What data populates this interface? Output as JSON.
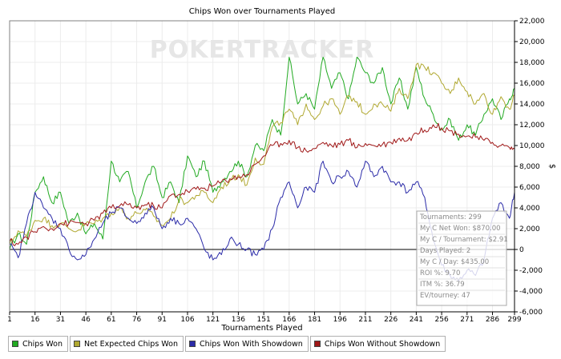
{
  "chart_data": {
    "type": "line",
    "title": "Chips Won over Tournaments Played",
    "watermark": "POKERTRACKER",
    "xlabel": "Tournaments Played",
    "ylabel": "$",
    "xlim": [
      1,
      299
    ],
    "ylim": [
      -6000,
      22000
    ],
    "x_ticks": [
      1,
      16,
      31,
      46,
      61,
      76,
      91,
      106,
      121,
      136,
      151,
      166,
      181,
      196,
      211,
      226,
      241,
      256,
      271,
      286,
      299
    ],
    "y_ticks": [
      -6000,
      -4000,
      -2000,
      0,
      2000,
      4000,
      6000,
      8000,
      10000,
      12000,
      14000,
      16000,
      18000,
      20000,
      22000
    ],
    "y_tick_labels": [
      "-6,000",
      "-4,000",
      "-2,000",
      "0",
      "2,000",
      "4,000",
      "6,000",
      "8,000",
      "10,000",
      "12,000",
      "14,000",
      "16,000",
      "18,000",
      "20,000",
      "22,000"
    ],
    "grid": true,
    "legend_position": "bottom",
    "series": [
      {
        "name": "Chips Won",
        "color": "#22aa22",
        "points": [
          [
            1,
            0
          ],
          [
            6,
            1500
          ],
          [
            11,
            500
          ],
          [
            16,
            5500
          ],
          [
            21,
            7000
          ],
          [
            26,
            4500
          ],
          [
            31,
            5500
          ],
          [
            36,
            2500
          ],
          [
            41,
            3500
          ],
          [
            46,
            1500
          ],
          [
            51,
            2500
          ],
          [
            56,
            1000
          ],
          [
            61,
            8500
          ],
          [
            66,
            6500
          ],
          [
            71,
            7500
          ],
          [
            76,
            4000
          ],
          [
            81,
            6500
          ],
          [
            86,
            8000
          ],
          [
            91,
            5000
          ],
          [
            96,
            6500
          ],
          [
            101,
            4500
          ],
          [
            106,
            9000
          ],
          [
            111,
            7000
          ],
          [
            116,
            8500
          ],
          [
            121,
            5500
          ],
          [
            126,
            6500
          ],
          [
            131,
            7500
          ],
          [
            136,
            8500
          ],
          [
            141,
            7000
          ],
          [
            146,
            10000
          ],
          [
            151,
            9500
          ],
          [
            156,
            12500
          ],
          [
            161,
            11000
          ],
          [
            166,
            18500
          ],
          [
            171,
            14000
          ],
          [
            176,
            15000
          ],
          [
            181,
            13500
          ],
          [
            186,
            18500
          ],
          [
            191,
            15500
          ],
          [
            196,
            17000
          ],
          [
            201,
            14500
          ],
          [
            206,
            18500
          ],
          [
            211,
            17000
          ],
          [
            216,
            16000
          ],
          [
            221,
            17500
          ],
          [
            226,
            14000
          ],
          [
            231,
            16500
          ],
          [
            236,
            13500
          ],
          [
            241,
            17500
          ],
          [
            246,
            14500
          ],
          [
            251,
            13000
          ],
          [
            256,
            11500
          ],
          [
            261,
            12500
          ],
          [
            266,
            10500
          ],
          [
            271,
            12000
          ],
          [
            276,
            11000
          ],
          [
            281,
            13000
          ],
          [
            286,
            14500
          ],
          [
            291,
            12500
          ],
          [
            296,
            14500
          ],
          [
            299,
            15500
          ]
        ]
      },
      {
        "name": "Net Expected Chips Won",
        "color": "#b0a830",
        "points": [
          [
            1,
            500
          ],
          [
            6,
            1800
          ],
          [
            11,
            1300
          ],
          [
            16,
            2800
          ],
          [
            21,
            3000
          ],
          [
            26,
            2300
          ],
          [
            31,
            2500
          ],
          [
            36,
            2000
          ],
          [
            41,
            1800
          ],
          [
            46,
            2500
          ],
          [
            51,
            2500
          ],
          [
            56,
            3000
          ],
          [
            61,
            3500
          ],
          [
            66,
            4000
          ],
          [
            71,
            3000
          ],
          [
            76,
            3500
          ],
          [
            81,
            3800
          ],
          [
            86,
            3200
          ],
          [
            91,
            2300
          ],
          [
            96,
            3000
          ],
          [
            101,
            4800
          ],
          [
            106,
            4500
          ],
          [
            111,
            5200
          ],
          [
            116,
            5500
          ],
          [
            121,
            4500
          ],
          [
            126,
            6000
          ],
          [
            131,
            6600
          ],
          [
            136,
            7200
          ],
          [
            141,
            6200
          ],
          [
            146,
            8800
          ],
          [
            151,
            8200
          ],
          [
            156,
            11800
          ],
          [
            161,
            12200
          ],
          [
            166,
            13500
          ],
          [
            171,
            12000
          ],
          [
            176,
            14000
          ],
          [
            181,
            12500
          ],
          [
            186,
            13800
          ],
          [
            191,
            14500
          ],
          [
            196,
            13000
          ],
          [
            201,
            14800
          ],
          [
            206,
            14200
          ],
          [
            211,
            13000
          ],
          [
            216,
            14000
          ],
          [
            221,
            14000
          ],
          [
            226,
            13300
          ],
          [
            231,
            15500
          ],
          [
            236,
            14500
          ],
          [
            241,
            17800
          ],
          [
            246,
            17500
          ],
          [
            251,
            17000
          ],
          [
            256,
            16000
          ],
          [
            261,
            15000
          ],
          [
            266,
            16500
          ],
          [
            271,
            15200
          ],
          [
            276,
            14000
          ],
          [
            281,
            15000
          ],
          [
            286,
            13000
          ],
          [
            291,
            14700
          ],
          [
            296,
            13500
          ],
          [
            299,
            14800
          ]
        ]
      },
      {
        "name": "Chips Won With Showdown",
        "color": "#2b2ba8",
        "points": [
          [
            1,
            500
          ],
          [
            6,
            -800
          ],
          [
            11,
            2500
          ],
          [
            16,
            5500
          ],
          [
            21,
            4000
          ],
          [
            26,
            3000
          ],
          [
            31,
            2000
          ],
          [
            36,
            0
          ],
          [
            41,
            -1000
          ],
          [
            46,
            -500
          ],
          [
            51,
            1000
          ],
          [
            56,
            2500
          ],
          [
            61,
            3500
          ],
          [
            66,
            4000
          ],
          [
            71,
            3000
          ],
          [
            76,
            2500
          ],
          [
            81,
            3500
          ],
          [
            86,
            4000
          ],
          [
            91,
            2000
          ],
          [
            96,
            3000
          ],
          [
            101,
            2500
          ],
          [
            106,
            3000
          ],
          [
            111,
            2000
          ],
          [
            116,
            0
          ],
          [
            121,
            -1000
          ],
          [
            126,
            -500
          ],
          [
            131,
            1000
          ],
          [
            136,
            500
          ],
          [
            141,
            0
          ],
          [
            146,
            -500
          ],
          [
            151,
            0
          ],
          [
            156,
            2000
          ],
          [
            161,
            5000
          ],
          [
            166,
            6500
          ],
          [
            171,
            4000
          ],
          [
            176,
            6000
          ],
          [
            181,
            5500
          ],
          [
            186,
            8500
          ],
          [
            191,
            6500
          ],
          [
            196,
            7000
          ],
          [
            201,
            7500
          ],
          [
            206,
            6000
          ],
          [
            211,
            8500
          ],
          [
            216,
            7000
          ],
          [
            221,
            8000
          ],
          [
            226,
            6500
          ],
          [
            231,
            6500
          ],
          [
            236,
            5500
          ],
          [
            241,
            6500
          ],
          [
            246,
            5000
          ],
          [
            251,
            1000
          ],
          [
            256,
            -1500
          ],
          [
            261,
            -2500
          ],
          [
            266,
            -3000
          ],
          [
            271,
            -2000
          ],
          [
            276,
            -2500
          ],
          [
            281,
            -1000
          ],
          [
            286,
            3000
          ],
          [
            291,
            4500
          ],
          [
            296,
            3000
          ],
          [
            299,
            5500
          ]
        ]
      },
      {
        "name": "Chips Won Without Showdown",
        "color": "#a01818",
        "points": [
          [
            1,
            800
          ],
          [
            6,
            500
          ],
          [
            11,
            1200
          ],
          [
            16,
            1700
          ],
          [
            21,
            2200
          ],
          [
            26,
            2000
          ],
          [
            31,
            2500
          ],
          [
            36,
            2500
          ],
          [
            41,
            2600
          ],
          [
            46,
            2500
          ],
          [
            51,
            2800
          ],
          [
            56,
            3500
          ],
          [
            61,
            4000
          ],
          [
            66,
            4200
          ],
          [
            71,
            4300
          ],
          [
            76,
            4000
          ],
          [
            81,
            4300
          ],
          [
            86,
            4200
          ],
          [
            91,
            4000
          ],
          [
            96,
            5200
          ],
          [
            101,
            5300
          ],
          [
            106,
            5600
          ],
          [
            111,
            5800
          ],
          [
            116,
            5900
          ],
          [
            121,
            6100
          ],
          [
            126,
            6500
          ],
          [
            131,
            6800
          ],
          [
            136,
            7000
          ],
          [
            141,
            7200
          ],
          [
            146,
            8200
          ],
          [
            151,
            9000
          ],
          [
            156,
            10000
          ],
          [
            161,
            10200
          ],
          [
            166,
            10500
          ],
          [
            171,
            9800
          ],
          [
            176,
            9500
          ],
          [
            181,
            9700
          ],
          [
            186,
            10300
          ],
          [
            191,
            10000
          ],
          [
            196,
            10100
          ],
          [
            201,
            10500
          ],
          [
            206,
            9800
          ],
          [
            211,
            10200
          ],
          [
            216,
            10000
          ],
          [
            221,
            10100
          ],
          [
            226,
            10300
          ],
          [
            231,
            10700
          ],
          [
            236,
            10500
          ],
          [
            241,
            11200
          ],
          [
            246,
            11500
          ],
          [
            251,
            12000
          ],
          [
            256,
            11700
          ],
          [
            261,
            11400
          ],
          [
            266,
            11100
          ],
          [
            271,
            10900
          ],
          [
            276,
            10800
          ],
          [
            281,
            10500
          ],
          [
            286,
            10300
          ],
          [
            291,
            10000
          ],
          [
            296,
            9800
          ],
          [
            299,
            9700
          ]
        ]
      }
    ],
    "info_box": {
      "lines": [
        "Tournaments: 299",
        "My C Net Won: $870.00",
        "My C / Tournament: $2.91",
        "Days Played: 2",
        "My C / Day: $435.00",
        "ROI %: 9.70",
        "ITM %: 36.79",
        "EV/tourney: 47"
      ]
    }
  }
}
